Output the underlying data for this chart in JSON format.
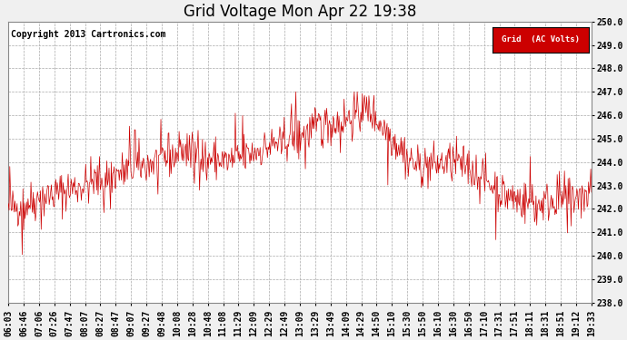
{
  "title": "Grid Voltage Mon Apr 22 19:38",
  "copyright": "Copyright 2013 Cartronics.com",
  "legend_label": "Grid  (AC Volts)",
  "line_color": "#cc0000",
  "legend_bg": "#cc0000",
  "legend_text_color": "#ffffff",
  "plot_bg": "#ffffff",
  "fig_bg": "#f0f0f0",
  "grid_color": "#aaaaaa",
  "ylim": [
    238.0,
    250.0
  ],
  "yticks": [
    238.0,
    239.0,
    240.0,
    241.0,
    242.0,
    243.0,
    244.0,
    245.0,
    246.0,
    247.0,
    248.0,
    249.0,
    250.0
  ],
  "xtick_labels": [
    "06:03",
    "06:46",
    "07:06",
    "07:26",
    "07:47",
    "08:07",
    "08:27",
    "08:47",
    "09:07",
    "09:27",
    "09:48",
    "10:08",
    "10:28",
    "10:48",
    "11:08",
    "11:29",
    "12:09",
    "12:29",
    "12:49",
    "13:09",
    "13:29",
    "13:49",
    "14:09",
    "14:29",
    "14:50",
    "15:10",
    "15:30",
    "15:50",
    "16:10",
    "16:30",
    "16:50",
    "17:10",
    "17:31",
    "17:51",
    "18:11",
    "18:31",
    "18:51",
    "19:12",
    "19:33"
  ],
  "seed": 42,
  "n_points": 800,
  "title_fontsize": 12,
  "axis_fontsize": 7,
  "copyright_fontsize": 7
}
